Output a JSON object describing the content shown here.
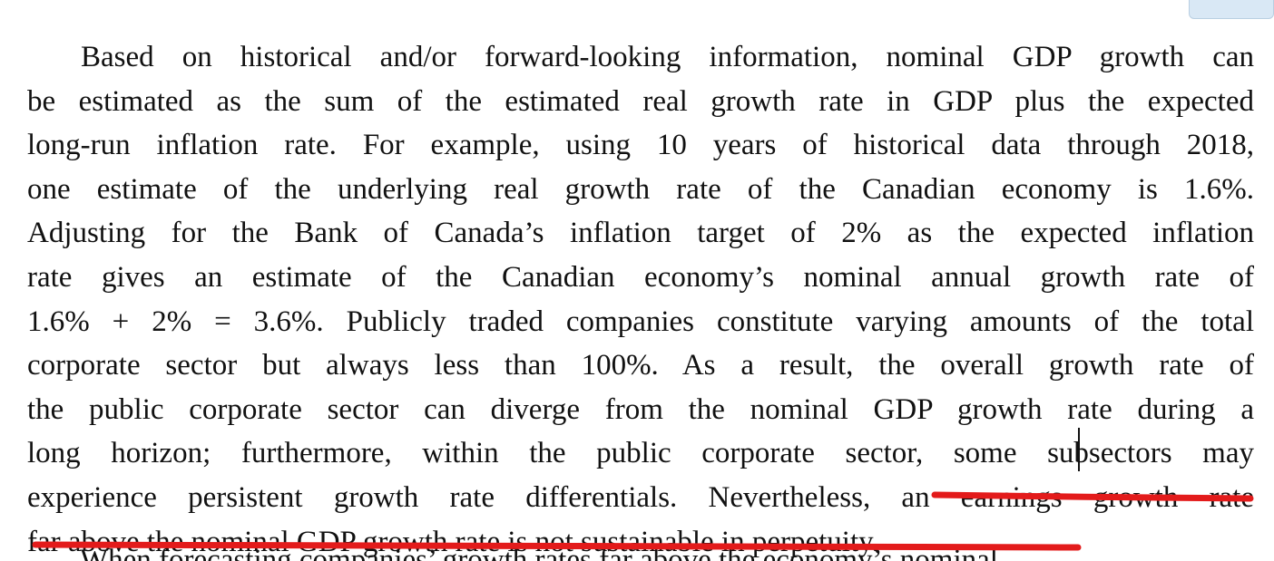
{
  "document": {
    "lines": [
      "Based on historical and/or forward-looking information, nominal GDP growth can",
      "be estimated as the sum of the estimated real growth rate in GDP plus the expected",
      "long-run inflation rate. For example, using 10 years of historical data through 2018,",
      "one estimate of the underlying real growth rate of the Canadian economy is 1.6%.",
      "Adjusting for the Bank of Canada’s inflation target of 2% as the expected inflation",
      "rate gives an estimate of the Canadian economy’s nominal annual growth rate of",
      "1.6% + 2% = 3.6%. Publicly traded companies constitute varying amounts of the total",
      "corporate sector but always less than 100%. As a result, the overall growth rate of",
      "the public corporate sector can diverge from the nominal GDP growth rate during a",
      "long horizon; furthermore, within the public corporate sector, some subsectors may",
      "experience persistent growth rate differentials. Nevertheless, an earnings growth rate",
      "far above the nominal GDP growth rate is not sustainable in perpetuity."
    ],
    "cut_off_line": "When forecasting companies’ growth rates far above the economy’s nominal"
  },
  "annotation": {
    "underline_color": "#e31b1b"
  }
}
